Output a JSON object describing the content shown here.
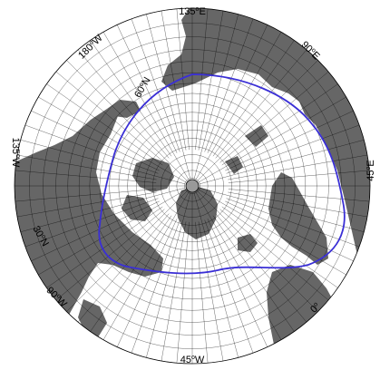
{
  "map": {
    "projection": "north-polar-stereographic",
    "colors": {
      "land": "#666666",
      "ocean": "#ffffff",
      "grid": "#000000",
      "circle_line": "#3a2fd6",
      "pole": "#999999"
    },
    "labels": [
      {
        "id": "lon-135e",
        "deg": "135",
        "hemi": "E"
      },
      {
        "id": "lon-90e",
        "deg": "90",
        "hemi": "E"
      },
      {
        "id": "lon-45e",
        "deg": "45",
        "hemi": "E"
      },
      {
        "id": "lon-0",
        "deg": "0",
        "hemi": ""
      },
      {
        "id": "lon-45w",
        "deg": "45",
        "hemi": "W"
      },
      {
        "id": "lon-90w",
        "deg": "90",
        "hemi": "W"
      },
      {
        "id": "lon-135w",
        "deg": "135",
        "hemi": "W"
      },
      {
        "id": "lon-180w",
        "deg": "180",
        "hemi": "W"
      },
      {
        "id": "lat-60n",
        "deg": "60",
        "hemi": "N"
      },
      {
        "id": "lat-30n",
        "deg": "30",
        "hemi": "N"
      }
    ]
  }
}
